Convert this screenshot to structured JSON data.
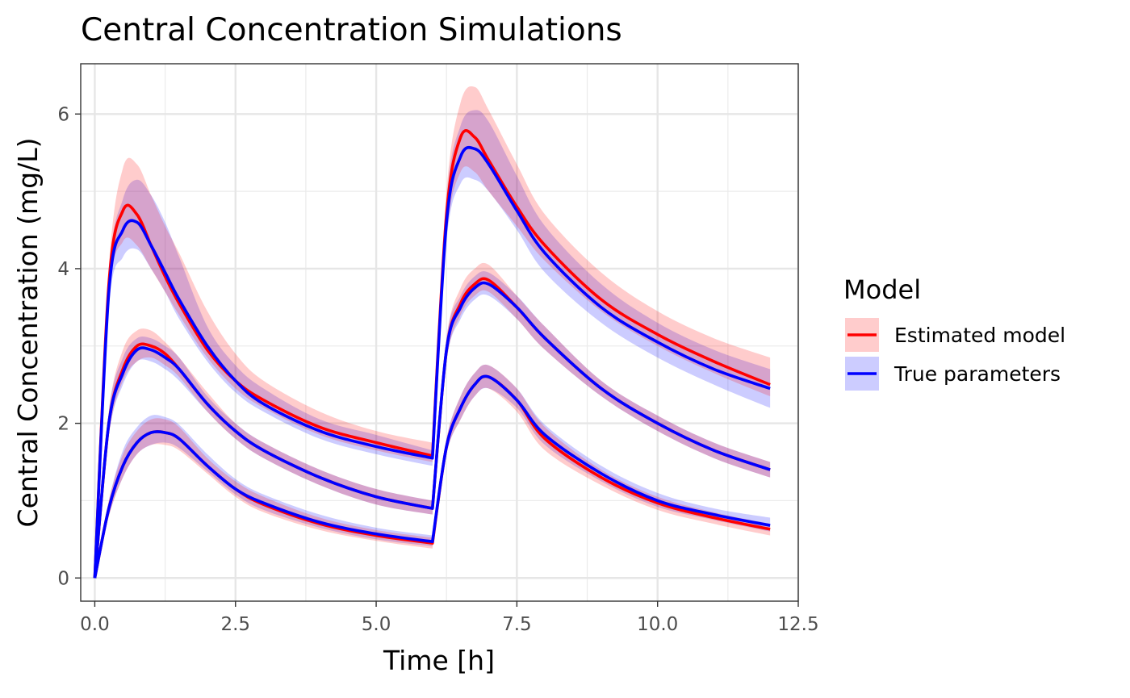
{
  "chart_data": {
    "type": "line",
    "title": "Central Concentration Simulations",
    "xlabel": "Time [h]",
    "ylabel": "Central Concentration (mg/L)",
    "xlim": [
      -0.25,
      12.5
    ],
    "ylim": [
      -0.3,
      6.65
    ],
    "x_ticks": [
      0,
      2.5,
      5,
      7.5,
      10,
      12.5
    ],
    "x_tick_labels": [
      "0.0",
      "2.5",
      "5.0",
      "7.5",
      "10.0",
      "12.5"
    ],
    "y_ticks": [
      0,
      2,
      4,
      6
    ],
    "y_tick_labels": [
      "0",
      "2",
      "4",
      "6"
    ],
    "grid": true,
    "legend": {
      "title": "Model",
      "position": "right",
      "entries": [
        {
          "label": "Estimated model",
          "line_color": "#ff0000",
          "fill_color": "#ff0000"
        },
        {
          "label": "True parameters",
          "line_color": "#0000ff",
          "fill_color": "#0000ff"
        }
      ]
    },
    "x": [
      0,
      0.25,
      0.5,
      0.75,
      1,
      1.25,
      1.5,
      2,
      2.5,
      3,
      4,
      5,
      6,
      6.25,
      6.5,
      6.75,
      7,
      7.5,
      8,
      9,
      10,
      11,
      12
    ],
    "series": [
      {
        "name": "Estimated model",
        "group": "upper",
        "color": "#ff0000",
        "values": [
          0,
          3.8,
          4.75,
          4.7,
          4.3,
          3.9,
          3.55,
          2.95,
          2.55,
          2.3,
          1.95,
          1.75,
          1.58,
          4.7,
          5.7,
          5.7,
          5.4,
          4.8,
          4.3,
          3.6,
          3.15,
          2.8,
          2.5
        ],
        "lower": [
          0,
          3.6,
          4.35,
          4.3,
          4.0,
          3.7,
          3.4,
          2.85,
          2.45,
          2.2,
          1.85,
          1.65,
          1.5,
          4.4,
          5.25,
          5.25,
          5.0,
          4.55,
          4.1,
          3.45,
          3.0,
          2.65,
          2.35
        ],
        "upper": [
          0,
          4.0,
          5.3,
          5.35,
          4.95,
          4.55,
          4.2,
          3.45,
          2.9,
          2.55,
          2.15,
          1.9,
          1.75,
          5.0,
          6.15,
          6.35,
          6.05,
          5.35,
          4.7,
          3.95,
          3.45,
          3.1,
          2.85
        ]
      },
      {
        "name": "True parameters",
        "group": "upper",
        "color": "#0000ff",
        "values": [
          0,
          3.7,
          4.5,
          4.6,
          4.3,
          3.95,
          3.6,
          3.0,
          2.55,
          2.25,
          1.9,
          1.7,
          1.55,
          4.6,
          5.45,
          5.55,
          5.35,
          4.75,
          4.2,
          3.5,
          3.05,
          2.7,
          2.45
        ],
        "lower": [
          0,
          3.5,
          4.15,
          4.25,
          4.0,
          3.7,
          3.35,
          2.8,
          2.4,
          2.15,
          1.8,
          1.6,
          1.45,
          4.35,
          5.1,
          5.15,
          5.0,
          4.5,
          3.95,
          3.3,
          2.85,
          2.5,
          2.2
        ],
        "upper": [
          0,
          3.9,
          4.9,
          5.15,
          4.95,
          4.6,
          4.15,
          3.25,
          2.75,
          2.45,
          2.05,
          1.85,
          1.65,
          4.9,
          5.85,
          6.05,
          5.9,
          5.2,
          4.55,
          3.8,
          3.3,
          2.95,
          2.7
        ]
      },
      {
        "name": "Estimated model",
        "group": "middle",
        "color": "#ff0000",
        "values": [
          0,
          2.0,
          2.7,
          3.0,
          3.0,
          2.9,
          2.7,
          2.25,
          1.9,
          1.65,
          1.3,
          1.05,
          0.9,
          2.95,
          3.55,
          3.8,
          3.85,
          3.5,
          3.1,
          2.45,
          2.0,
          1.65,
          1.4
        ],
        "lower": [
          0,
          1.85,
          2.55,
          2.8,
          2.85,
          2.75,
          2.6,
          2.15,
          1.8,
          1.55,
          1.2,
          0.95,
          0.82,
          2.8,
          3.4,
          3.65,
          3.7,
          3.35,
          2.95,
          2.35,
          1.9,
          1.55,
          1.3
        ],
        "upper": [
          0,
          2.15,
          2.95,
          3.2,
          3.2,
          3.05,
          2.85,
          2.4,
          2.0,
          1.75,
          1.4,
          1.15,
          1.0,
          3.1,
          3.75,
          4.0,
          4.05,
          3.65,
          3.25,
          2.55,
          2.1,
          1.75,
          1.5
        ]
      },
      {
        "name": "True parameters",
        "group": "middle",
        "color": "#0000ff",
        "values": [
          0,
          2.0,
          2.65,
          2.95,
          2.95,
          2.85,
          2.7,
          2.25,
          1.9,
          1.65,
          1.3,
          1.05,
          0.9,
          2.95,
          3.5,
          3.75,
          3.8,
          3.5,
          3.1,
          2.45,
          2.0,
          1.65,
          1.4
        ],
        "lower": [
          0,
          1.85,
          2.5,
          2.8,
          2.8,
          2.7,
          2.55,
          2.15,
          1.8,
          1.55,
          1.2,
          0.95,
          0.82,
          2.8,
          3.35,
          3.6,
          3.65,
          3.35,
          2.95,
          2.35,
          1.9,
          1.55,
          1.3
        ],
        "upper": [
          0,
          2.15,
          2.85,
          3.1,
          3.1,
          3.0,
          2.85,
          2.35,
          2.0,
          1.75,
          1.4,
          1.15,
          1.0,
          3.1,
          3.65,
          3.9,
          3.95,
          3.65,
          3.25,
          2.55,
          2.1,
          1.75,
          1.5
        ]
      },
      {
        "name": "Estimated model",
        "group": "lower",
        "color": "#ff0000",
        "values": [
          0,
          0.9,
          1.45,
          1.75,
          1.88,
          1.88,
          1.8,
          1.45,
          1.15,
          0.95,
          0.7,
          0.55,
          0.45,
          1.7,
          2.2,
          2.5,
          2.6,
          2.3,
          1.8,
          1.3,
          0.97,
          0.78,
          0.63
        ],
        "lower": [
          0,
          0.8,
          1.3,
          1.6,
          1.72,
          1.72,
          1.65,
          1.35,
          1.05,
          0.85,
          0.62,
          0.48,
          0.38,
          1.6,
          2.05,
          2.35,
          2.45,
          2.15,
          1.65,
          1.2,
          0.88,
          0.7,
          0.55
        ],
        "upper": [
          0,
          1.0,
          1.6,
          1.9,
          2.05,
          2.05,
          1.95,
          1.55,
          1.25,
          1.05,
          0.78,
          0.62,
          0.52,
          1.8,
          2.35,
          2.65,
          2.75,
          2.45,
          1.95,
          1.4,
          1.05,
          0.85,
          0.7
        ]
      },
      {
        "name": "True parameters",
        "group": "lower",
        "color": "#0000ff",
        "values": [
          0,
          0.9,
          1.45,
          1.75,
          1.88,
          1.88,
          1.8,
          1.45,
          1.15,
          0.97,
          0.72,
          0.57,
          0.47,
          1.7,
          2.2,
          2.5,
          2.6,
          2.3,
          1.85,
          1.35,
          1.0,
          0.82,
          0.68
        ],
        "lower": [
          0,
          0.8,
          1.3,
          1.6,
          1.72,
          1.75,
          1.68,
          1.38,
          1.08,
          0.88,
          0.65,
          0.5,
          0.41,
          1.6,
          2.05,
          2.35,
          2.45,
          2.2,
          1.72,
          1.25,
          0.92,
          0.75,
          0.6
        ],
        "upper": [
          0,
          1.0,
          1.65,
          1.95,
          2.1,
          2.08,
          1.98,
          1.6,
          1.28,
          1.08,
          0.82,
          0.65,
          0.55,
          1.8,
          2.35,
          2.65,
          2.75,
          2.45,
          1.98,
          1.45,
          1.1,
          0.9,
          0.78
        ]
      }
    ]
  }
}
